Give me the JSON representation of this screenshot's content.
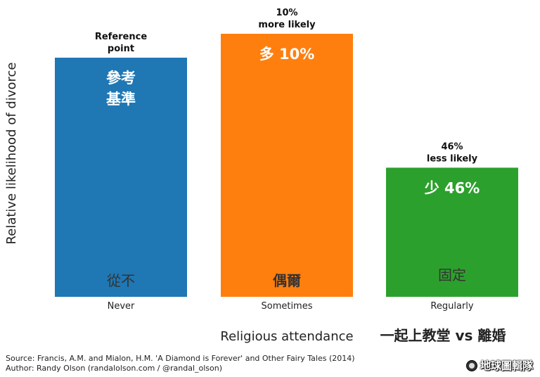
{
  "chart_data": {
    "type": "bar",
    "title": "",
    "ylabel": "Relative likelihood of divorce",
    "xlabel": "Religious attendance",
    "xlabel_cn": "一起上教堂 vs 離婚",
    "categories": [
      "Never",
      "Sometimes",
      "Regularly"
    ],
    "categories_cn": [
      "從不",
      "偶爾",
      "固定"
    ],
    "values": [
      1.0,
      1.1,
      0.54
    ],
    "ylim": [
      0,
      1.15
    ],
    "colors": [
      "#1f77b4",
      "#ff7f0e",
      "#2ca02c"
    ],
    "annotations": [
      [
        "Reference",
        "point"
      ],
      [
        "10%",
        "more likely"
      ],
      [
        "46%",
        "less likely"
      ]
    ],
    "annotations_cn": [
      [
        "參考",
        "基準"
      ],
      [
        "多 10%"
      ],
      [
        "少 46%"
      ]
    ],
    "grid": false
  },
  "footer": {
    "source": "Source: Francis, A.M. and Mialon, H.M. 'A Diamond is Forever' and Other Fairy Tales (2014)",
    "author": "Author: Randy Olson (randalolson.com / @randal_olson)"
  },
  "brand": {
    "label": "地球圖輯隊",
    "icon": "globe-icon"
  }
}
